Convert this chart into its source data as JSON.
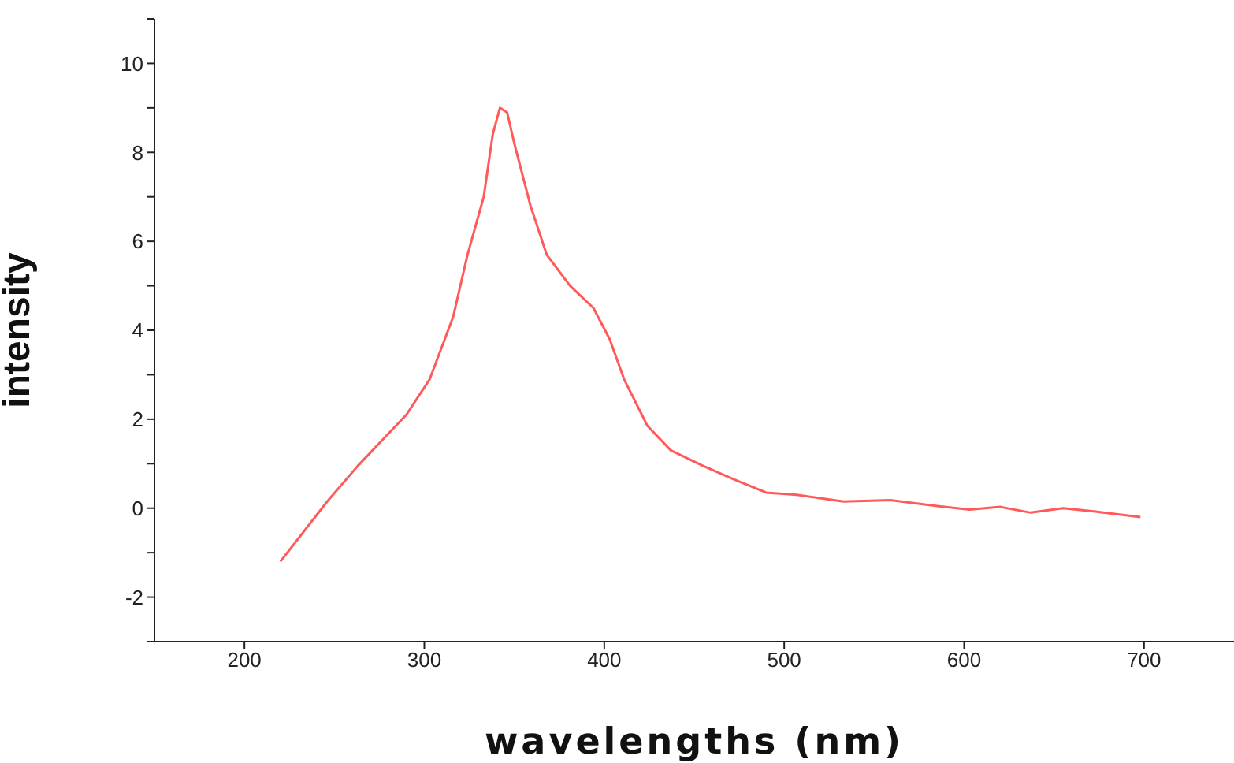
{
  "chart_data": {
    "type": "line",
    "xlabel": "wavelengths (nm)",
    "ylabel": "intensity",
    "xlim": [
      150,
      750
    ],
    "xticks": [
      200,
      300,
      400,
      500,
      600,
      700
    ],
    "ylim": [
      -3,
      11
    ],
    "yticks": [
      {
        "value": -3,
        "label": null
      },
      -2,
      {
        "value": -1,
        "label": null
      },
      0,
      {
        "value": 1,
        "label": null
      },
      2,
      {
        "value": 3,
        "label": null
      },
      4,
      {
        "value": 5,
        "label": null
      },
      6,
      {
        "value": 7,
        "label": null
      },
      8,
      {
        "value": 9,
        "label": null
      },
      10,
      {
        "value": 11,
        "label": null
      }
    ],
    "marker": "none",
    "line_style": "solid",
    "series": [
      {
        "color": "#ff5a5a",
        "x": [
          220,
          246,
          263,
          290,
          303,
          316,
          324,
          333,
          338,
          342,
          346,
          350,
          359,
          368,
          381,
          394,
          403,
          411,
          424,
          437,
          455,
          472,
          490,
          507,
          533,
          559,
          585,
          603,
          620,
          637,
          655,
          672,
          698
        ],
        "values": [
          -1.2,
          0.15,
          0.95,
          2.1,
          2.9,
          4.3,
          5.7,
          7.0,
          8.4,
          9.0,
          8.9,
          8.2,
          6.8,
          5.7,
          5.0,
          4.5,
          3.8,
          2.9,
          1.85,
          1.3,
          0.95,
          0.65,
          0.35,
          0.3,
          0.15,
          0.18,
          0.05,
          -0.03,
          0.03,
          -0.1,
          0.0,
          -0.07,
          -0.2
        ]
      }
    ]
  }
}
